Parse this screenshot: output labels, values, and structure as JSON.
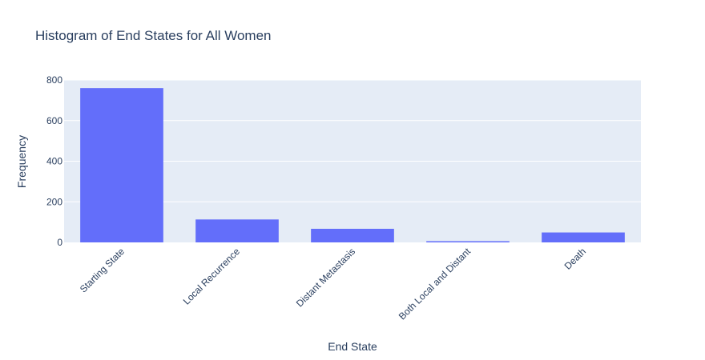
{
  "chart_data": {
    "type": "bar",
    "title": "Histogram of End States for All Women",
    "xlabel": "End State",
    "ylabel": "Frequency",
    "categories": [
      "Starting State",
      "Local Recurrence",
      "Distant Metastasis",
      "Both Local and Distant",
      "Death"
    ],
    "values": [
      760,
      113,
      67,
      6,
      49
    ],
    "ylim": [
      0,
      800
    ],
    "yticks": [
      0,
      200,
      400,
      600,
      800
    ],
    "grid": true,
    "legend": "none",
    "colors": {
      "bar": "#636efa",
      "plot_bg": "#e5ecf6",
      "grid": "#ffffff",
      "text": "#2a3f5f"
    }
  }
}
